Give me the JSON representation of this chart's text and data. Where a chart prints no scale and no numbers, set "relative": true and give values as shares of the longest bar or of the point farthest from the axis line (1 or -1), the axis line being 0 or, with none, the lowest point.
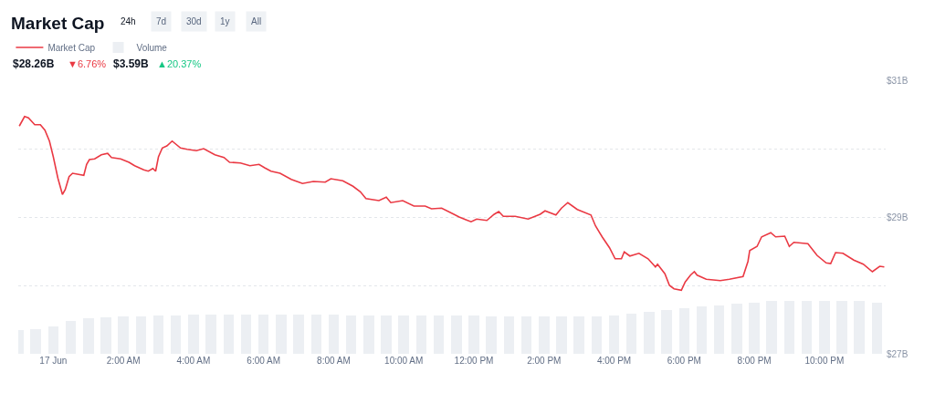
{
  "chart_data": [
    {
      "type": "line",
      "title": "Market Cap",
      "annotations": [
        "24h",
        "7d",
        "30d",
        "1y",
        "All",
        "$28.26B",
        "▼6.76%",
        "$3.59B",
        "▲20.37%"
      ],
      "xlim": [
        -1.0,
        23.75
      ],
      "xticks": [
        {
          "value": 0,
          "label": "17 Jun"
        },
        {
          "value": 2,
          "label": "2:00 AM"
        },
        {
          "value": 4,
          "label": "4:00 AM"
        },
        {
          "value": 6,
          "label": "6:00 AM"
        },
        {
          "value": 8,
          "label": "8:00 AM"
        },
        {
          "value": 10,
          "label": "10:00 AM"
        },
        {
          "value": 12,
          "label": "12:00 PM"
        },
        {
          "value": 14,
          "label": "2:00 PM"
        },
        {
          "value": 16,
          "label": "4:00 PM"
        },
        {
          "value": 18,
          "label": "6:00 PM"
        },
        {
          "value": 20,
          "label": "8:00 PM"
        },
        {
          "value": 22,
          "label": "10:00 PM"
        }
      ],
      "ylim": [
        27,
        31
      ],
      "yticks": [
        {
          "value": 27,
          "label": "$27B"
        },
        {
          "value": 28,
          "label": null
        },
        {
          "value": 29,
          "label": "$29B"
        },
        {
          "value": 30,
          "label": null
        },
        {
          "value": 31,
          "label": "$31B"
        }
      ],
      "grid": "y",
      "legend": "top left",
      "series": [
        {
          "name": "Market Cap",
          "color": "#ea3943",
          "x": [
            -0.97,
            -0.82,
            -0.71,
            -0.53,
            -0.37,
            -0.24,
            -0.11,
            0,
            0.13,
            0.26,
            0.34,
            0.45,
            0.55,
            0.87,
            0.95,
            1.03,
            1.18,
            1.37,
            1.55,
            1.66,
            1.92,
            2.16,
            2.32,
            2.58,
            2.71,
            2.84,
            2.92,
            3.0,
            3.11,
            3.24,
            3.39,
            3.63,
            3.82,
            4.08,
            4.29,
            4.61,
            4.87,
            5.03,
            5.34,
            5.61,
            5.87,
            6.03,
            6.21,
            6.47,
            6.79,
            7.11,
            7.42,
            7.76,
            7.92,
            8.26,
            8.55,
            8.76,
            8.92,
            9.29,
            9.5,
            9.63,
            9.97,
            10.29,
            10.61,
            10.79,
            11.08,
            11.39,
            11.58,
            11.92,
            12.08,
            12.37,
            12.58,
            12.71,
            12.84,
            13.18,
            13.55,
            13.89,
            14.03,
            14.34,
            14.5,
            14.68,
            14.95,
            15.34,
            15.47,
            15.66,
            15.87,
            16.03,
            16.21,
            16.29,
            16.45,
            16.71,
            16.97,
            17.18,
            17.24,
            17.45,
            17.58,
            17.71,
            17.92,
            18.03,
            18.18,
            18.29,
            18.37,
            18.63,
            19.03,
            19.29,
            19.68,
            19.82,
            19.87,
            20.08,
            20.21,
            20.47,
            20.61,
            20.87,
            21.0,
            21.13,
            21.53,
            21.79,
            22.05,
            22.18,
            22.32,
            22.53,
            22.84,
            23.11,
            23.37,
            23.58,
            23.71
          ],
          "values": [
            30.33,
            30.47,
            30.45,
            30.35,
            30.35,
            30.27,
            30.11,
            29.88,
            29.57,
            29.33,
            29.4,
            29.59,
            29.64,
            29.61,
            29.77,
            29.84,
            29.85,
            29.91,
            29.93,
            29.87,
            29.85,
            29.8,
            29.75,
            29.69,
            29.67,
            29.71,
            29.67,
            29.88,
            30.01,
            30.04,
            30.11,
            30.01,
            29.99,
            29.97,
            30.0,
            29.91,
            29.87,
            29.8,
            29.79,
            29.75,
            29.77,
            29.72,
            29.67,
            29.64,
            29.55,
            29.49,
            29.52,
            29.51,
            29.56,
            29.53,
            29.45,
            29.37,
            29.27,
            29.24,
            29.29,
            29.21,
            29.24,
            29.16,
            29.16,
            29.12,
            29.13,
            29.05,
            29.0,
            28.93,
            28.97,
            28.95,
            29.04,
            29.08,
            29.01,
            29.01,
            28.97,
            29.04,
            29.09,
            29.03,
            29.13,
            29.21,
            29.11,
            29.03,
            28.87,
            28.71,
            28.55,
            28.39,
            28.39,
            28.49,
            28.43,
            28.47,
            28.39,
            28.27,
            28.31,
            28.17,
            28.0,
            27.95,
            27.93,
            28.05,
            28.15,
            28.2,
            28.15,
            28.09,
            28.07,
            28.09,
            28.13,
            28.35,
            28.51,
            28.57,
            28.71,
            28.77,
            28.71,
            28.72,
            28.57,
            28.63,
            28.61,
            28.44,
            28.33,
            28.32,
            28.48,
            28.47,
            28.37,
            28.31,
            28.2,
            28.28,
            28.27
          ]
        }
      ]
    },
    {
      "type": "bar",
      "relative": true,
      "tick_labels": false,
      "legend": "top left",
      "xlim": [
        -1.0,
        23.75
      ],
      "series": [
        {
          "name": "Volume",
          "color": "#eceff3",
          "x": [
            -1,
            -0.5,
            0,
            0.5,
            1,
            1.5,
            2,
            2.5,
            3,
            3.5,
            4,
            4.5,
            5,
            5.5,
            6,
            6.5,
            7,
            7.5,
            8,
            8.5,
            9,
            9.5,
            10,
            10.5,
            11,
            11.5,
            12,
            12.5,
            13,
            13.5,
            14,
            14.5,
            15,
            15.5,
            16,
            16.5,
            17,
            17.5,
            18,
            18.5,
            19,
            19.5,
            20,
            20.5,
            21,
            21.5,
            22,
            22.5,
            23,
            23.5
          ],
          "values": [
            0.45,
            0.47,
            0.52,
            0.62,
            0.68,
            0.69,
            0.7,
            0.71,
            0.72,
            0.73,
            0.74,
            0.74,
            0.74,
            0.74,
            0.74,
            0.74,
            0.74,
            0.74,
            0.74,
            0.73,
            0.73,
            0.73,
            0.73,
            0.72,
            0.72,
            0.72,
            0.72,
            0.71,
            0.71,
            0.71,
            0.71,
            0.71,
            0.71,
            0.71,
            0.73,
            0.76,
            0.79,
            0.83,
            0.86,
            0.89,
            0.92,
            0.95,
            0.97,
            1.0,
            1.0,
            1.0,
            1.0,
            1.0,
            1.0,
            0.97
          ]
        }
      ]
    }
  ]
}
